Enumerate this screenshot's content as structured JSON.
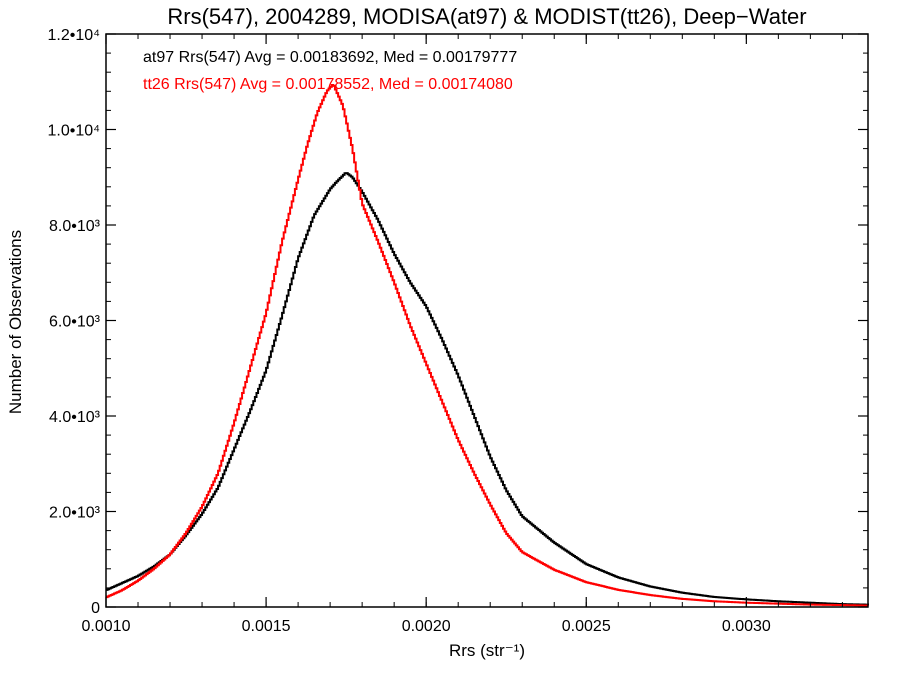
{
  "chart_data": {
    "type": "line",
    "title": "Rrs(547), 2004289, MODISA(at97) & MODIST(tt26), Deep−Water",
    "xlabel": "Rrs (str⁻¹)",
    "ylabel": "Number of Observations",
    "xlim": [
      0.001,
      0.00338
    ],
    "ylim": [
      0,
      12000
    ],
    "grid": false,
    "step": true,
    "x_ticks": [
      {
        "value": 0.001,
        "label": "0.0010"
      },
      {
        "value": 0.0015,
        "label": "0.0015"
      },
      {
        "value": 0.002,
        "label": "0.0020"
      },
      {
        "value": 0.0025,
        "label": "0.0025"
      },
      {
        "value": 0.003,
        "label": "0.0030"
      }
    ],
    "y_ticks": [
      {
        "value": 0,
        "label": "0"
      },
      {
        "value": 2000,
        "label": "2.0•10³"
      },
      {
        "value": 4000,
        "label": "4.0•10³"
      },
      {
        "value": 6000,
        "label": "6.0•10³"
      },
      {
        "value": 8000,
        "label": "8.0•10³"
      },
      {
        "value": 10000,
        "label": "1.0•10⁴"
      },
      {
        "value": 12000,
        "label": "1.2•10⁴"
      }
    ],
    "series": [
      {
        "name": "at97",
        "color": "#000000",
        "legend_text": "at97 Rrs(547) Avg = 0.00183692, Med = 0.00179777",
        "x": [
          0.001,
          0.00105,
          0.0011,
          0.00115,
          0.0012,
          0.00125,
          0.0013,
          0.00135,
          0.0014,
          0.00145,
          0.0015,
          0.00155,
          0.0016,
          0.00165,
          0.0017,
          0.00172,
          0.00175,
          0.00177,
          0.0018,
          0.00185,
          0.0019,
          0.00195,
          0.002,
          0.00205,
          0.0021,
          0.00215,
          0.0022,
          0.00225,
          0.0023,
          0.0024,
          0.0025,
          0.0026,
          0.0027,
          0.0028,
          0.0029,
          0.003,
          0.0031,
          0.0032,
          0.0033,
          0.00338
        ],
        "y": [
          350,
          500,
          650,
          850,
          1100,
          1500,
          1950,
          2500,
          3300,
          4100,
          4950,
          6100,
          7300,
          8200,
          8750,
          8900,
          9100,
          9000,
          8700,
          8100,
          7400,
          6800,
          6300,
          5600,
          4850,
          4000,
          3150,
          2450,
          1900,
          1350,
          900,
          620,
          430,
          300,
          210,
          160,
          120,
          90,
          60,
          50
        ]
      },
      {
        "name": "tt26",
        "color": "#ff0000",
        "legend_text": "tt26 Rrs(547) Avg = 0.00178552, Med = 0.00174080",
        "x": [
          0.001,
          0.00105,
          0.0011,
          0.00115,
          0.0012,
          0.00125,
          0.0013,
          0.00135,
          0.0014,
          0.00145,
          0.0015,
          0.00155,
          0.0016,
          0.00163,
          0.00166,
          0.00169,
          0.00171,
          0.00174,
          0.00177,
          0.0018,
          0.00185,
          0.0019,
          0.00195,
          0.002,
          0.00205,
          0.0021,
          0.00215,
          0.0022,
          0.00225,
          0.0023,
          0.0024,
          0.0025,
          0.0026,
          0.0027,
          0.0028,
          0.0029,
          0.003,
          0.0031,
          0.0032,
          0.0033,
          0.00338
        ],
        "y": [
          200,
          350,
          550,
          800,
          1100,
          1550,
          2100,
          2800,
          3850,
          5000,
          6150,
          7650,
          8950,
          9700,
          10350,
          10800,
          10950,
          10500,
          9600,
          8450,
          7650,
          6800,
          5900,
          5100,
          4300,
          3500,
          2800,
          2150,
          1550,
          1150,
          780,
          520,
          360,
          250,
          170,
          120,
          90,
          70,
          50,
          40,
          30
        ]
      }
    ],
    "legend_position": "top-left"
  }
}
